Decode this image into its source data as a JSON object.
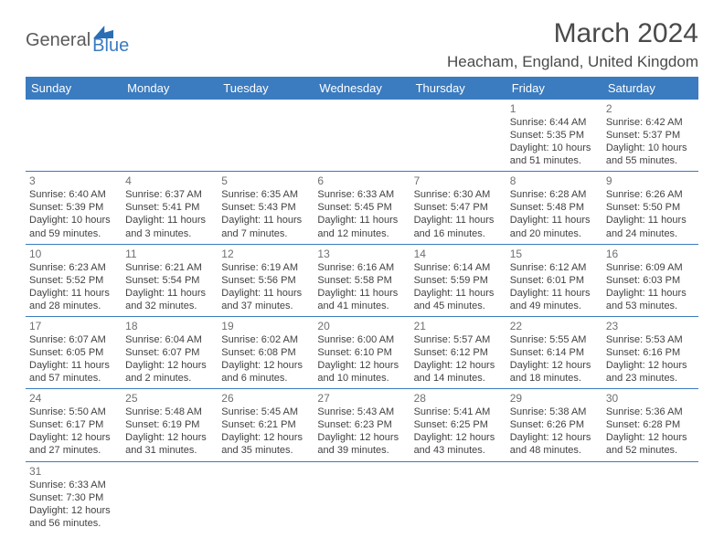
{
  "logo": {
    "word1": "General",
    "word2": "Blue"
  },
  "title": "March 2024",
  "location": "Heacham, England, United Kingdom",
  "colors": {
    "header_bg": "#3b7bbf",
    "header_fg": "#ffffff",
    "rule": "#3b7bbf",
    "text": "#424242",
    "daynum": "#707070"
  },
  "weekdays": [
    "Sunday",
    "Monday",
    "Tuesday",
    "Wednesday",
    "Thursday",
    "Friday",
    "Saturday"
  ],
  "weeks": [
    [
      null,
      null,
      null,
      null,
      null,
      {
        "n": "1",
        "sunrise": "Sunrise: 6:44 AM",
        "sunset": "Sunset: 5:35 PM",
        "daylight": "Daylight: 10 hours and 51 minutes."
      },
      {
        "n": "2",
        "sunrise": "Sunrise: 6:42 AM",
        "sunset": "Sunset: 5:37 PM",
        "daylight": "Daylight: 10 hours and 55 minutes."
      }
    ],
    [
      {
        "n": "3",
        "sunrise": "Sunrise: 6:40 AM",
        "sunset": "Sunset: 5:39 PM",
        "daylight": "Daylight: 10 hours and 59 minutes."
      },
      {
        "n": "4",
        "sunrise": "Sunrise: 6:37 AM",
        "sunset": "Sunset: 5:41 PM",
        "daylight": "Daylight: 11 hours and 3 minutes."
      },
      {
        "n": "5",
        "sunrise": "Sunrise: 6:35 AM",
        "sunset": "Sunset: 5:43 PM",
        "daylight": "Daylight: 11 hours and 7 minutes."
      },
      {
        "n": "6",
        "sunrise": "Sunrise: 6:33 AM",
        "sunset": "Sunset: 5:45 PM",
        "daylight": "Daylight: 11 hours and 12 minutes."
      },
      {
        "n": "7",
        "sunrise": "Sunrise: 6:30 AM",
        "sunset": "Sunset: 5:47 PM",
        "daylight": "Daylight: 11 hours and 16 minutes."
      },
      {
        "n": "8",
        "sunrise": "Sunrise: 6:28 AM",
        "sunset": "Sunset: 5:48 PM",
        "daylight": "Daylight: 11 hours and 20 minutes."
      },
      {
        "n": "9",
        "sunrise": "Sunrise: 6:26 AM",
        "sunset": "Sunset: 5:50 PM",
        "daylight": "Daylight: 11 hours and 24 minutes."
      }
    ],
    [
      {
        "n": "10",
        "sunrise": "Sunrise: 6:23 AM",
        "sunset": "Sunset: 5:52 PM",
        "daylight": "Daylight: 11 hours and 28 minutes."
      },
      {
        "n": "11",
        "sunrise": "Sunrise: 6:21 AM",
        "sunset": "Sunset: 5:54 PM",
        "daylight": "Daylight: 11 hours and 32 minutes."
      },
      {
        "n": "12",
        "sunrise": "Sunrise: 6:19 AM",
        "sunset": "Sunset: 5:56 PM",
        "daylight": "Daylight: 11 hours and 37 minutes."
      },
      {
        "n": "13",
        "sunrise": "Sunrise: 6:16 AM",
        "sunset": "Sunset: 5:58 PM",
        "daylight": "Daylight: 11 hours and 41 minutes."
      },
      {
        "n": "14",
        "sunrise": "Sunrise: 6:14 AM",
        "sunset": "Sunset: 5:59 PM",
        "daylight": "Daylight: 11 hours and 45 minutes."
      },
      {
        "n": "15",
        "sunrise": "Sunrise: 6:12 AM",
        "sunset": "Sunset: 6:01 PM",
        "daylight": "Daylight: 11 hours and 49 minutes."
      },
      {
        "n": "16",
        "sunrise": "Sunrise: 6:09 AM",
        "sunset": "Sunset: 6:03 PM",
        "daylight": "Daylight: 11 hours and 53 minutes."
      }
    ],
    [
      {
        "n": "17",
        "sunrise": "Sunrise: 6:07 AM",
        "sunset": "Sunset: 6:05 PM",
        "daylight": "Daylight: 11 hours and 57 minutes."
      },
      {
        "n": "18",
        "sunrise": "Sunrise: 6:04 AM",
        "sunset": "Sunset: 6:07 PM",
        "daylight": "Daylight: 12 hours and 2 minutes."
      },
      {
        "n": "19",
        "sunrise": "Sunrise: 6:02 AM",
        "sunset": "Sunset: 6:08 PM",
        "daylight": "Daylight: 12 hours and 6 minutes."
      },
      {
        "n": "20",
        "sunrise": "Sunrise: 6:00 AM",
        "sunset": "Sunset: 6:10 PM",
        "daylight": "Daylight: 12 hours and 10 minutes."
      },
      {
        "n": "21",
        "sunrise": "Sunrise: 5:57 AM",
        "sunset": "Sunset: 6:12 PM",
        "daylight": "Daylight: 12 hours and 14 minutes."
      },
      {
        "n": "22",
        "sunrise": "Sunrise: 5:55 AM",
        "sunset": "Sunset: 6:14 PM",
        "daylight": "Daylight: 12 hours and 18 minutes."
      },
      {
        "n": "23",
        "sunrise": "Sunrise: 5:53 AM",
        "sunset": "Sunset: 6:16 PM",
        "daylight": "Daylight: 12 hours and 23 minutes."
      }
    ],
    [
      {
        "n": "24",
        "sunrise": "Sunrise: 5:50 AM",
        "sunset": "Sunset: 6:17 PM",
        "daylight": "Daylight: 12 hours and 27 minutes."
      },
      {
        "n": "25",
        "sunrise": "Sunrise: 5:48 AM",
        "sunset": "Sunset: 6:19 PM",
        "daylight": "Daylight: 12 hours and 31 minutes."
      },
      {
        "n": "26",
        "sunrise": "Sunrise: 5:45 AM",
        "sunset": "Sunset: 6:21 PM",
        "daylight": "Daylight: 12 hours and 35 minutes."
      },
      {
        "n": "27",
        "sunrise": "Sunrise: 5:43 AM",
        "sunset": "Sunset: 6:23 PM",
        "daylight": "Daylight: 12 hours and 39 minutes."
      },
      {
        "n": "28",
        "sunrise": "Sunrise: 5:41 AM",
        "sunset": "Sunset: 6:25 PM",
        "daylight": "Daylight: 12 hours and 43 minutes."
      },
      {
        "n": "29",
        "sunrise": "Sunrise: 5:38 AM",
        "sunset": "Sunset: 6:26 PM",
        "daylight": "Daylight: 12 hours and 48 minutes."
      },
      {
        "n": "30",
        "sunrise": "Sunrise: 5:36 AM",
        "sunset": "Sunset: 6:28 PM",
        "daylight": "Daylight: 12 hours and 52 minutes."
      }
    ],
    [
      {
        "n": "31",
        "sunrise": "Sunrise: 6:33 AM",
        "sunset": "Sunset: 7:30 PM",
        "daylight": "Daylight: 12 hours and 56 minutes."
      },
      null,
      null,
      null,
      null,
      null,
      null
    ]
  ]
}
